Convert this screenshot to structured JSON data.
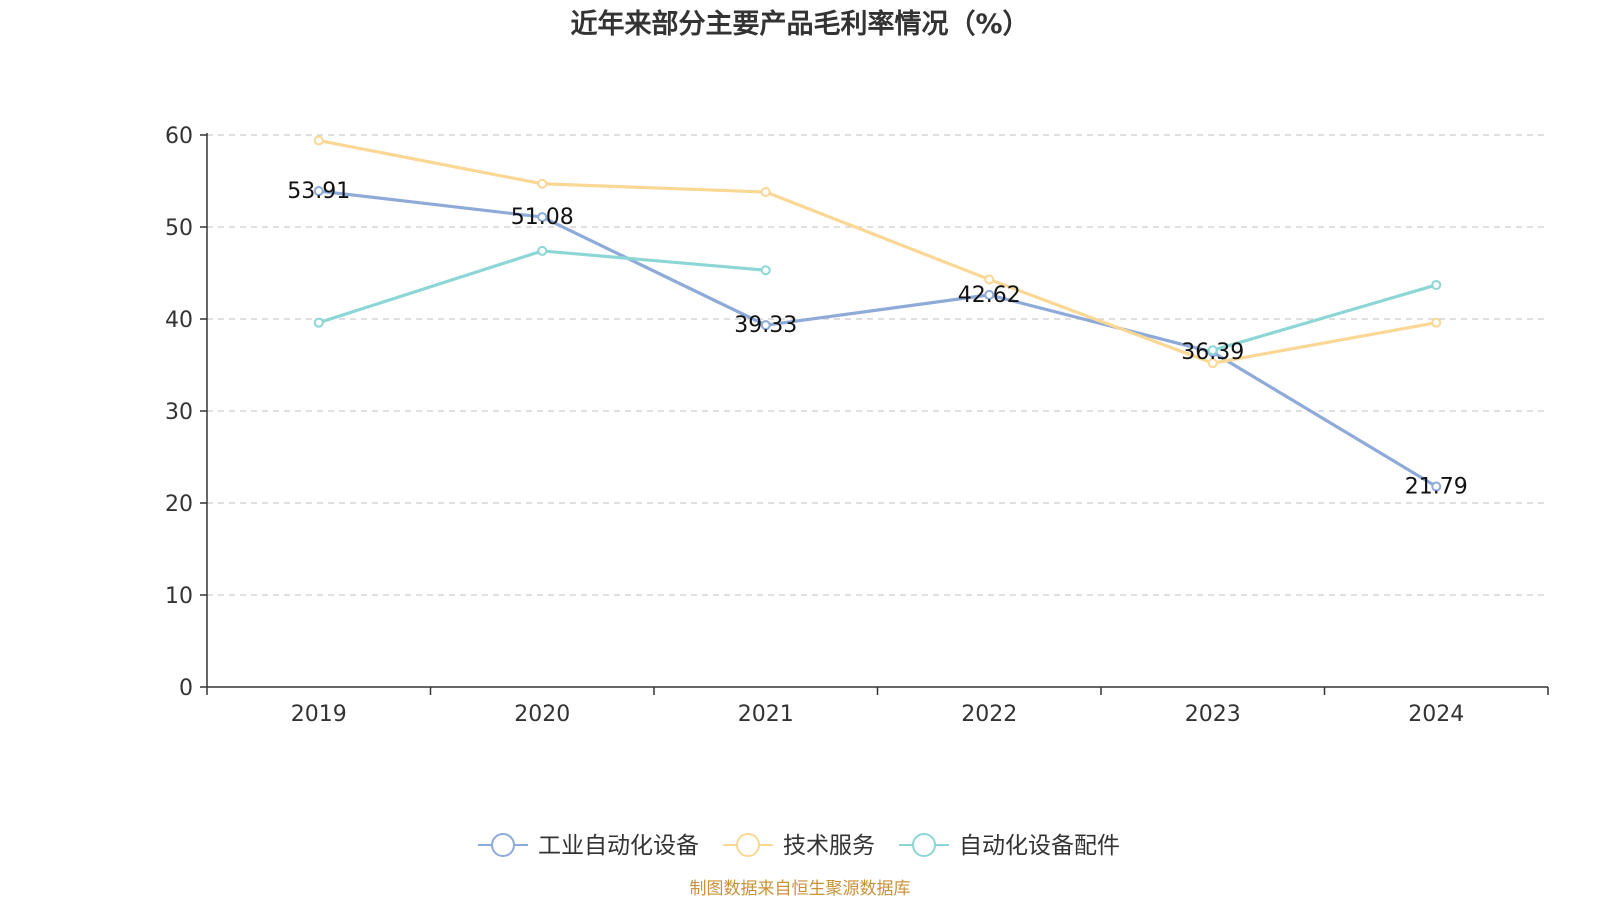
{
  "chart_data": {
    "type": "line",
    "title": "近年来部分主要产品毛利率情况（%）",
    "categories": [
      "2019",
      "2020",
      "2021",
      "2022",
      "2023",
      "2024"
    ],
    "ylim": [
      0,
      60
    ],
    "yticks": [
      "0",
      "10",
      "20",
      "30",
      "40",
      "50",
      "60"
    ],
    "grid": true,
    "legend_position": "bottom-center",
    "series": [
      {
        "name": "工业自动化设备",
        "color": "#8eaad8",
        "show_labels": true,
        "values": [
          53.91,
          51.08,
          39.33,
          42.62,
          36.39,
          21.79
        ],
        "labels": [
          "53.91",
          "51.08",
          "39.33",
          "42.62",
          "36.39",
          "21.79"
        ]
      },
      {
        "name": "技术服务",
        "color": "#fad794",
        "values": [
          59.4,
          54.7,
          53.8,
          44.3,
          35.2,
          39.6
        ]
      },
      {
        "name": "自动化设备配件",
        "color": "#8dd6d6",
        "values": [
          39.6,
          47.4,
          45.3,
          null,
          36.6,
          43.7
        ]
      }
    ]
  },
  "footer": {
    "source": "制图数据来自恒生聚源数据库",
    "source_color": "#c8923a"
  },
  "colors": {
    "axis": "#333333",
    "grid": "#cccccc"
  }
}
